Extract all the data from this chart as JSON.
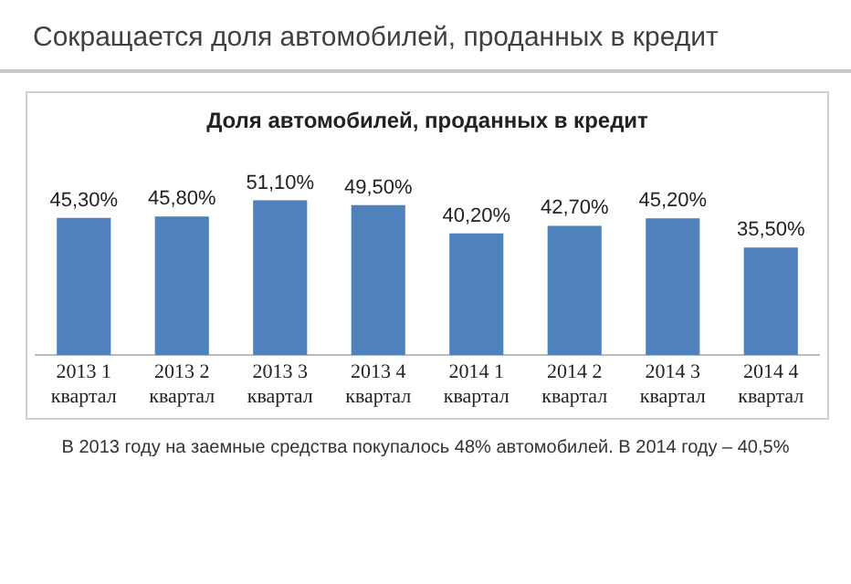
{
  "chart_data": {
    "type": "bar",
    "title": "Сокращается доля автомобилей, проданных в кредит",
    "subtitle": "Доля автомобилей, проданных в кредит",
    "categories": [
      "2013 1 квартал",
      "2013 2 квартал",
      "2013 3 квартал",
      "2013 4 квартал",
      "2014 1 квартал",
      "2014 2 квартал",
      "2014 3 квартал",
      "2014 4 квартал"
    ],
    "values": [
      45.3,
      45.8,
      51.1,
      49.5,
      40.2,
      42.7,
      45.2,
      35.5
    ],
    "value_labels": [
      "45,30%",
      "45,80%",
      "51,10%",
      "49,50%",
      "40,20%",
      "42,70%",
      "45,20%",
      "35,50%"
    ],
    "color": "#4f81bd",
    "grid": false,
    "legend": false,
    "annotations": [
      "В 2013 году на заемные средства покупалось 48% автомобилей. В 2014 году – 40,5%"
    ]
  }
}
